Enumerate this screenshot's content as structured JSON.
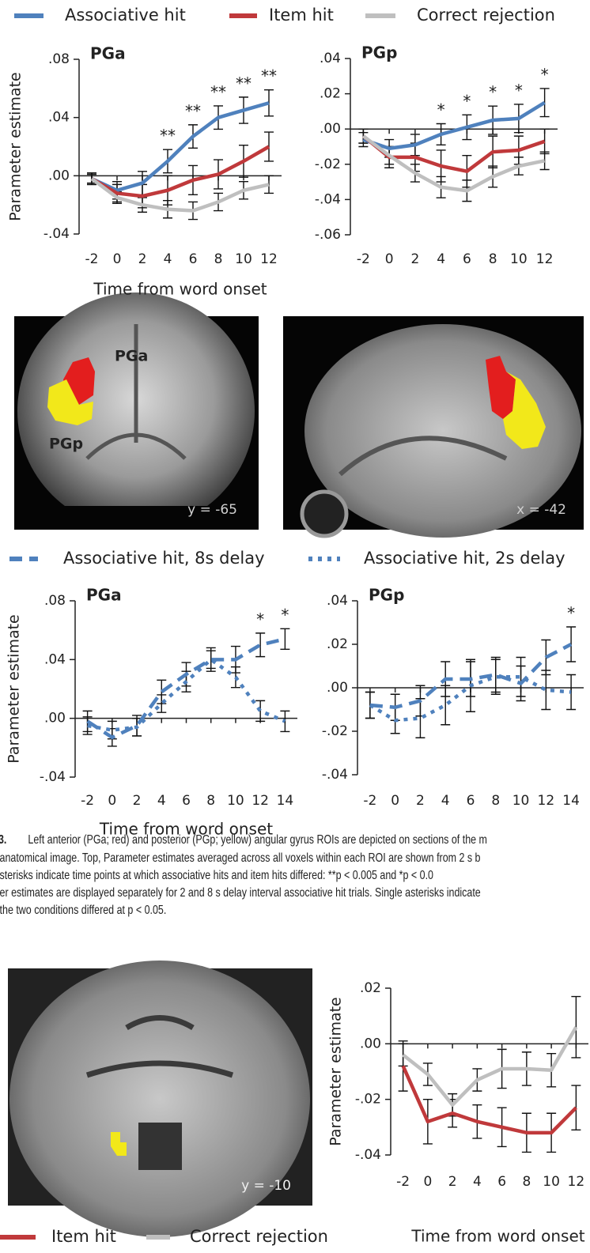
{
  "chart_data": [
    {
      "type": "line",
      "title": "PGa",
      "ylabel": "Parameter estimate",
      "xlabel": "Time from word onset",
      "x": [
        -2,
        0,
        2,
        4,
        6,
        8,
        10,
        12
      ],
      "xlim": [
        -3,
        13
      ],
      "xticks": [
        -2,
        0,
        2,
        4,
        6,
        8,
        10,
        12
      ],
      "ylim": [
        -0.04,
        0.08
      ],
      "yticks": [
        {
          "value": -0.04,
          "label": "-.04"
        },
        {
          "value": 0,
          "label": ".00"
        },
        {
          "value": 0.04,
          "label": ".04"
        },
        {
          "value": 0.08,
          "label": ".08"
        }
      ],
      "series": [
        {
          "name": "Associative hit",
          "color": "#4f81bd",
          "dash": "solid",
          "values": [
            -0.002,
            -0.01,
            -0.005,
            0.01,
            0.027,
            0.04,
            0.045,
            0.05
          ],
          "errors": [
            0.004,
            0.006,
            0.008,
            0.008,
            0.008,
            0.008,
            0.009,
            0.009
          ]
        },
        {
          "name": "Item hit",
          "color": "#c0393b",
          "dash": "solid",
          "values": [
            -0.002,
            -0.012,
            -0.014,
            -0.01,
            -0.003,
            0.001,
            0.01,
            0.02
          ],
          "errors": [
            0.004,
            0.006,
            0.008,
            0.01,
            0.01,
            0.01,
            0.011,
            0.01
          ]
        },
        {
          "name": "Correct rejection",
          "color": "#bfbfbf",
          "dash": "solid",
          "values": [
            -0.002,
            -0.015,
            -0.02,
            -0.023,
            -0.024,
            -0.018,
            -0.01,
            -0.006
          ],
          "errors": [
            0.003,
            0.004,
            0.005,
            0.006,
            0.006,
            0.006,
            0.006,
            0.006
          ]
        }
      ],
      "annotations": [
        {
          "x": 4,
          "text": "**"
        },
        {
          "x": 6,
          "text": "**"
        },
        {
          "x": 8,
          "text": "**"
        },
        {
          "x": 10,
          "text": "**"
        },
        {
          "x": 12,
          "text": "**"
        }
      ]
    },
    {
      "type": "line",
      "title": "PGp",
      "x": [
        -2,
        0,
        2,
        4,
        6,
        8,
        10,
        12
      ],
      "xlim": [
        -3,
        13
      ],
      "xticks": [
        -2,
        0,
        2,
        4,
        6,
        8,
        10,
        12
      ],
      "ylim": [
        -0.06,
        0.04
      ],
      "yticks": [
        {
          "value": -0.06,
          "label": "-.06"
        },
        {
          "value": -0.04,
          "label": "-.04"
        },
        {
          "value": -0.02,
          "label": "-.02"
        },
        {
          "value": 0,
          "label": ".00"
        },
        {
          "value": 0.02,
          "label": ".02"
        },
        {
          "value": 0.04,
          "label": ".04"
        }
      ],
      "series": [
        {
          "name": "Associative hit",
          "color": "#4f81bd",
          "dash": "solid",
          "values": [
            -0.006,
            -0.011,
            -0.009,
            -0.003,
            0.001,
            0.005,
            0.006,
            0.015
          ],
          "errors": [
            0.004,
            0.005,
            0.006,
            0.006,
            0.007,
            0.008,
            0.008,
            0.008
          ]
        },
        {
          "name": "Item hit",
          "color": "#c0393b",
          "dash": "solid",
          "values": [
            -0.004,
            -0.016,
            -0.016,
            -0.021,
            -0.024,
            -0.013,
            -0.012,
            -0.007
          ],
          "errors": [
            0.004,
            0.006,
            0.008,
            0.009,
            0.009,
            0.009,
            0.008,
            0.007
          ]
        },
        {
          "name": "Correct rejection",
          "color": "#bfbfbf",
          "dash": "solid",
          "values": [
            -0.004,
            -0.015,
            -0.025,
            -0.033,
            -0.035,
            -0.027,
            -0.021,
            -0.018
          ],
          "errors": [
            0.004,
            0.005,
            0.005,
            0.006,
            0.006,
            0.006,
            0.005,
            0.005
          ]
        }
      ],
      "annotations": [
        {
          "x": 4,
          "text": "*"
        },
        {
          "x": 6,
          "text": "*"
        },
        {
          "x": 8,
          "text": "*"
        },
        {
          "x": 10,
          "text": "*"
        },
        {
          "x": 12,
          "text": "*"
        }
      ]
    },
    {
      "type": "line",
      "title": "PGa",
      "ylabel": "Parameter estimate",
      "xlabel": "Time from word onset",
      "x": [
        -2,
        0,
        2,
        4,
        6,
        8,
        10,
        12,
        14
      ],
      "xlim": [
        -3,
        15
      ],
      "xticks": [
        -2,
        0,
        2,
        4,
        6,
        8,
        10,
        12,
        14
      ],
      "ylim": [
        -0.04,
        0.08
      ],
      "yticks": [
        {
          "value": -0.04,
          "label": "-.04"
        },
        {
          "value": 0,
          "label": ".00"
        },
        {
          "value": 0.04,
          "label": ".04"
        },
        {
          "value": 0.08,
          "label": ".08"
        }
      ],
      "series": [
        {
          "name": "Associative hit, 8s delay",
          "color": "#4f81bd",
          "dash": "dashed",
          "values": [
            -0.002,
            -0.013,
            -0.005,
            0.018,
            0.03,
            0.04,
            0.04,
            0.05,
            0.054
          ],
          "errors": [
            0.007,
            0.006,
            0.007,
            0.008,
            0.008,
            0.008,
            0.009,
            0.008,
            0.007
          ]
        },
        {
          "name": "Associative hit, 2s delay",
          "color": "#4f81bd",
          "dash": "dotted",
          "values": [
            -0.005,
            -0.008,
            -0.006,
            0.01,
            0.025,
            0.04,
            0.028,
            0.005,
            -0.002
          ],
          "errors": [
            0.006,
            0.006,
            0.006,
            0.006,
            0.007,
            0.006,
            0.007,
            0.007,
            0.007
          ]
        }
      ],
      "annotations": [
        {
          "x": 12,
          "text": "*"
        },
        {
          "x": 14,
          "text": "*"
        }
      ]
    },
    {
      "type": "line",
      "title": "PGp",
      "x": [
        -2,
        0,
        2,
        4,
        6,
        8,
        10,
        12,
        14
      ],
      "xlim": [
        -3,
        15
      ],
      "xticks": [
        -2,
        0,
        2,
        4,
        6,
        8,
        10,
        12,
        14
      ],
      "ylim": [
        -0.04,
        0.04
      ],
      "yticks": [
        {
          "value": -0.04,
          "label": "-.04"
        },
        {
          "value": -0.02,
          "label": "-.02"
        },
        {
          "value": 0,
          "label": ".00"
        },
        {
          "value": 0.02,
          "label": ".02"
        },
        {
          "value": 0.04,
          "label": ".04"
        }
      ],
      "series": [
        {
          "name": "Associative hit, 8s delay",
          "color": "#4f81bd",
          "dash": "dashed",
          "values": [
            -0.008,
            -0.009,
            -0.006,
            0.004,
            0.004,
            0.006,
            0.002,
            0.014,
            0.02
          ],
          "errors": [
            0.006,
            0.006,
            0.007,
            0.008,
            0.008,
            0.008,
            0.008,
            0.008,
            0.008
          ]
        },
        {
          "name": "Associative hit, 2s delay",
          "color": "#4f81bd",
          "dash": "dotted",
          "values": [
            -0.008,
            -0.015,
            -0.014,
            -0.008,
            0.001,
            0.005,
            0.005,
            -0.001,
            -0.002
          ],
          "errors": [
            0.006,
            0.006,
            0.009,
            0.009,
            0.012,
            0.008,
            0.009,
            0.009,
            0.008
          ]
        }
      ],
      "annotations": [
        {
          "x": 14,
          "text": "*"
        }
      ]
    },
    {
      "type": "line",
      "ylabel": "Parameter estimate",
      "xlabel": "Time from word onset",
      "x": [
        -2,
        0,
        2,
        4,
        6,
        8,
        10,
        12
      ],
      "xlim": [
        -3,
        13
      ],
      "xticks": [
        -2,
        0,
        2,
        4,
        6,
        8,
        10,
        12
      ],
      "ylim": [
        -0.04,
        0.02
      ],
      "yticks": [
        {
          "value": -0.04,
          "label": "-.04"
        },
        {
          "value": -0.02,
          "label": "-.02"
        },
        {
          "value": 0,
          "label": ".00"
        },
        {
          "value": 0.02,
          "label": ".02"
        }
      ],
      "series": [
        {
          "name": "Item hit",
          "color": "#c0393b",
          "dash": "solid",
          "values": [
            -0.008,
            -0.028,
            -0.025,
            -0.028,
            -0.03,
            -0.032,
            -0.032,
            -0.023
          ],
          "errors": [
            0.009,
            0.008,
            0.005,
            0.006,
            0.007,
            0.007,
            0.007,
            0.008
          ]
        },
        {
          "name": "Correct rejection",
          "color": "#bfbfbf",
          "dash": "solid",
          "values": [
            -0.004,
            -0.011,
            -0.022,
            -0.013,
            -0.009,
            -0.009,
            -0.0095,
            0.006
          ],
          "errors": [
            0.004,
            0.004,
            0.004,
            0.004,
            0.007,
            0.006,
            0.006,
            0.011
          ]
        }
      ]
    }
  ],
  "images": [
    {
      "labels": [
        "PGa",
        "PGp",
        "y = -65"
      ]
    },
    {
      "labels": [
        "x = -42"
      ]
    },
    {
      "labels": [
        "y = -10"
      ]
    }
  ],
  "caption_label": "3.",
  "caption": [
    "Left anterior (PGa; red) and posterior (PGp; yellow) angular gyrus ROIs are depicted on sections of the m",
    "anatomical image. Top, Parameter estimates averaged across all voxels within each ROI are shown from 2 s b",
    "sterisks indicate time points at which associative hits and item hits differed: **p < 0.005 and *p < 0.0",
    "er estimates are displayed separately for 2 and 8 s delay interval associative hit trials. Single asterisks indicate",
    "the two conditions differed at p < 0.05."
  ]
}
